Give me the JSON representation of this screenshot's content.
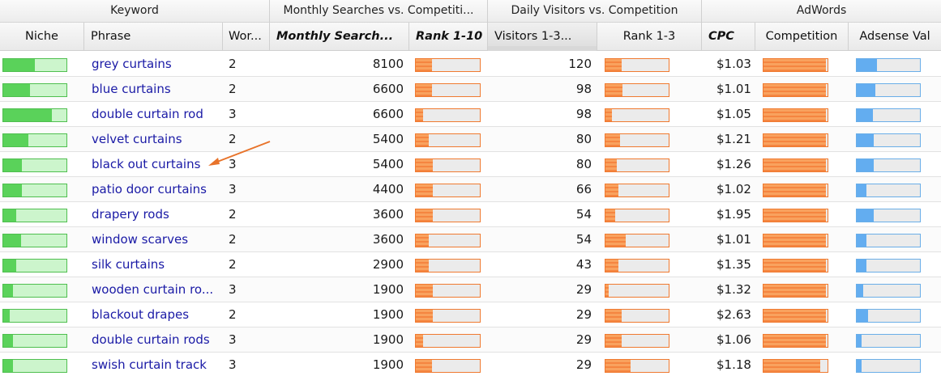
{
  "groups": {
    "keyword": "Keyword",
    "monthly": "Monthly Searches vs. Competiti...",
    "daily": "Daily Visitors vs. Competition",
    "adwords": "AdWords"
  },
  "columns": {
    "niche": "Niche",
    "phrase": "Phrase",
    "words": "Wor...",
    "monthly_searches": "Monthly Search...",
    "rank_1_10": "Rank 1-10",
    "visitors": "Visitors 1-3...",
    "rank_1_3": "Rank 1-3",
    "cpc": "CPC",
    "competition": "Competition",
    "adsense": "Adsense Val"
  },
  "colors": {
    "link": "#1a1aa6",
    "green": "#5ad25a",
    "orange": "#f58540",
    "blue": "#63adf0",
    "arrow": "#e8732a"
  },
  "rows": [
    {
      "phrase": "grey curtains",
      "words": "2",
      "monthly": "8100",
      "visitors": "120",
      "cpc": "$1.03",
      "niche": 0.5,
      "rank10": 0.25,
      "rank3": 0.25,
      "competition": 0.97,
      "adsense": 0.32
    },
    {
      "phrase": "blue curtains",
      "words": "2",
      "monthly": "6600",
      "visitors": "98",
      "cpc": "$1.01",
      "niche": 0.42,
      "rank10": 0.25,
      "rank3": 0.27,
      "competition": 0.97,
      "adsense": 0.3
    },
    {
      "phrase": "double curtain rod",
      "words": "3",
      "monthly": "6600",
      "visitors": "98",
      "cpc": "$1.05",
      "niche": 0.77,
      "rank10": 0.12,
      "rank3": 0.1,
      "competition": 0.97,
      "adsense": 0.25
    },
    {
      "phrase": "velvet curtains",
      "words": "2",
      "monthly": "5400",
      "visitors": "80",
      "cpc": "$1.21",
      "niche": 0.4,
      "rank10": 0.2,
      "rank3": 0.23,
      "competition": 0.97,
      "adsense": 0.27
    },
    {
      "phrase": "black out curtains",
      "words": "3",
      "monthly": "5400",
      "visitors": "80",
      "cpc": "$1.26",
      "niche": 0.3,
      "rank10": 0.27,
      "rank3": 0.18,
      "competition": 0.97,
      "adsense": 0.27
    },
    {
      "phrase": "patio door curtains",
      "words": "3",
      "monthly": "4400",
      "visitors": "66",
      "cpc": "$1.02",
      "niche": 0.3,
      "rank10": 0.27,
      "rank3": 0.2,
      "competition": 0.97,
      "adsense": 0.15
    },
    {
      "phrase": "drapery rods",
      "words": "2",
      "monthly": "3600",
      "visitors": "54",
      "cpc": "$1.95",
      "niche": 0.2,
      "rank10": 0.27,
      "rank3": 0.15,
      "competition": 0.97,
      "adsense": 0.27
    },
    {
      "phrase": "window scarves",
      "words": "2",
      "monthly": "3600",
      "visitors": "54",
      "cpc": "$1.01",
      "niche": 0.28,
      "rank10": 0.2,
      "rank3": 0.32,
      "competition": 0.97,
      "adsense": 0.15
    },
    {
      "phrase": "silk curtains",
      "words": "2",
      "monthly": "2900",
      "visitors": "43",
      "cpc": "$1.35",
      "niche": 0.2,
      "rank10": 0.2,
      "rank3": 0.2,
      "competition": 0.97,
      "adsense": 0.15
    },
    {
      "phrase": "wooden curtain ro...",
      "words": "3",
      "monthly": "1900",
      "visitors": "29",
      "cpc": "$1.32",
      "niche": 0.15,
      "rank10": 0.27,
      "rank3": 0.05,
      "competition": 0.97,
      "adsense": 0.1
    },
    {
      "phrase": "blackout drapes",
      "words": "2",
      "monthly": "1900",
      "visitors": "29",
      "cpc": "$2.63",
      "niche": 0.1,
      "rank10": 0.27,
      "rank3": 0.25,
      "competition": 0.97,
      "adsense": 0.18
    },
    {
      "phrase": "double curtain rods",
      "words": "3",
      "monthly": "1900",
      "visitors": "29",
      "cpc": "$1.06",
      "niche": 0.15,
      "rank10": 0.12,
      "rank3": 0.25,
      "competition": 0.97,
      "adsense": 0.08
    },
    {
      "phrase": "swish curtain track",
      "words": "3",
      "monthly": "1900",
      "visitors": "29",
      "cpc": "$1.18",
      "niche": 0.15,
      "rank10": 0.25,
      "rank3": 0.4,
      "competition": 0.88,
      "adsense": 0.08
    }
  ]
}
